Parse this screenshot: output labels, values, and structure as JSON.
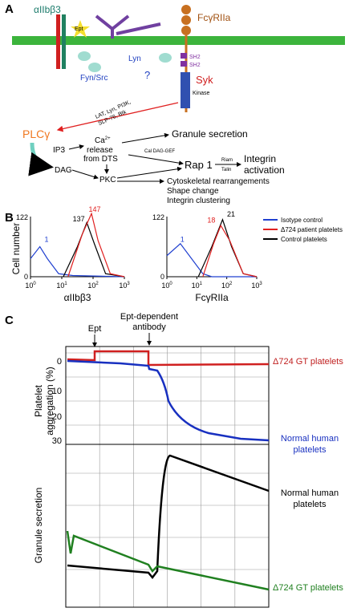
{
  "panel_a": {
    "label": "A",
    "integrin": "αIIbβ3",
    "ept": "Ept",
    "receptor": "FcγRIIa",
    "lyn": "Lyn",
    "sh2": [
      "SH2",
      "SH2"
    ],
    "question": "?",
    "fyn_src": "Fyn/Src",
    "syk": "Syk",
    "kinase": "Kinase",
    "adaptors": [
      "LAT, Lyn, PI3K,",
      "SLP-76, Btk"
    ],
    "plc": "PLCγ",
    "ip3": "IP3",
    "ca": {
      "base": "Ca",
      "sup": "2+"
    },
    "release": [
      "release",
      "from DTS"
    ],
    "dag": "DAG",
    "pkc": "PKC",
    "granule": "Granule secretion",
    "caldag": "Cal DAG-GEF",
    "rap1": "Rap 1",
    "riam": "Riam",
    "talin": "Talin",
    "integrin_activation": [
      "Integrin",
      "activation"
    ],
    "cyto": [
      "Cytoskeletal rearrangements",
      "Shape change",
      "Integrin clustering"
    ]
  },
  "panel_b": {
    "label": "B",
    "y_label": "Cell number",
    "y_top": "122",
    "y_bottom": "0",
    "xticks": [
      {
        "base": "10",
        "exp": "0"
      },
      {
        "base": "10",
        "exp": "1"
      },
      {
        "base": "10",
        "exp": "2"
      },
      {
        "base": "10",
        "exp": "3"
      }
    ],
    "histograms": [
      {
        "x_label": "αIIbβ3",
        "isotype": "1",
        "control": "137",
        "patient": "147"
      },
      {
        "x_label": "FcγRIIa",
        "isotype": "1",
        "control": "21",
        "patient": "18"
      }
    ],
    "legend": [
      "Isotype control",
      "Δ724 patient platelets",
      "Control platelets"
    ]
  },
  "panel_c": {
    "label": "C",
    "ept": "Ept",
    "antibody": [
      "Ept-dependent",
      "antibody"
    ],
    "y_label_top": [
      "Platelet",
      "aggregation (%)"
    ],
    "yticks": [
      "0",
      "10",
      "20",
      "30"
    ],
    "y_label_bottom": "Granule secretion",
    "traces": [
      [
        "Δ724 GT platelets"
      ],
      [
        "Normal human",
        "platelets"
      ],
      [
        "Normal human",
        "platelets"
      ],
      [
        "Δ724 GT platelets"
      ]
    ]
  }
}
